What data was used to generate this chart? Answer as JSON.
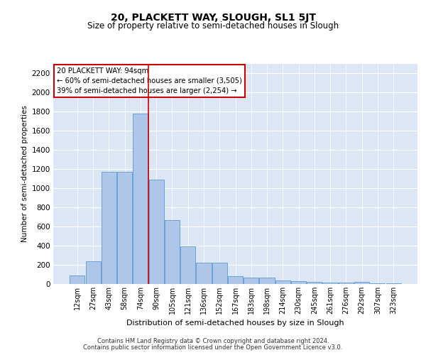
{
  "title": "20, PLACKETT WAY, SLOUGH, SL1 5JT",
  "subtitle": "Size of property relative to semi-detached houses in Slough",
  "xlabel": "Distribution of semi-detached houses by size in Slough",
  "ylabel": "Number of semi-detached properties",
  "footer_line1": "Contains HM Land Registry data © Crown copyright and database right 2024.",
  "footer_line2": "Contains public sector information licensed under the Open Government Licence v3.0.",
  "annotation_title": "20 PLACKETT WAY: 94sqm",
  "annotation_line1": "← 60% of semi-detached houses are smaller (3,505)",
  "annotation_line2": "39% of semi-detached houses are larger (2,254) →",
  "bar_labels": [
    "12sqm",
    "27sqm",
    "43sqm",
    "58sqm",
    "74sqm",
    "90sqm",
    "105sqm",
    "121sqm",
    "136sqm",
    "152sqm",
    "167sqm",
    "183sqm",
    "198sqm",
    "214sqm",
    "230sqm",
    "245sqm",
    "261sqm",
    "276sqm",
    "292sqm",
    "307sqm",
    "323sqm"
  ],
  "bar_values": [
    90,
    240,
    1170,
    1175,
    1780,
    1090,
    670,
    390,
    220,
    220,
    85,
    70,
    70,
    40,
    30,
    20,
    15,
    15,
    20,
    10,
    5
  ],
  "bar_color": "#aec6e8",
  "bar_edge_color": "#5b9bd5",
  "property_line_color": "#cc0000",
  "property_line_idx": 5,
  "ylim": [
    0,
    2300
  ],
  "yticks": [
    0,
    200,
    400,
    600,
    800,
    1000,
    1200,
    1400,
    1600,
    1800,
    2000,
    2200
  ],
  "plot_bg_color": "#dce6f5",
  "title_fontsize": 10,
  "subtitle_fontsize": 8.5
}
